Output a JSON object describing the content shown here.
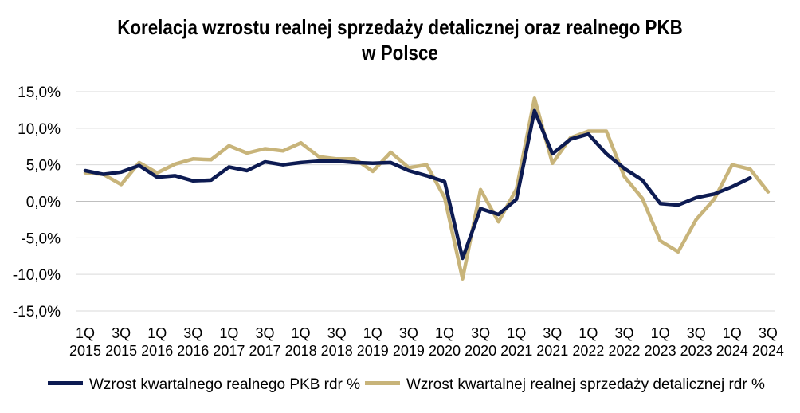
{
  "colors": {
    "gdp": "#0d1b52",
    "retail": "#c8b47a",
    "grid": "#d9d9d9",
    "axis": "#bfbfbf"
  },
  "chart_data": {
    "type": "line",
    "title_lines": [
      "Korelacja wzrostu realnej sprzedaży detalicznej oraz realnego PKB",
      "w Polsce"
    ],
    "ylim": [
      -15,
      15
    ],
    "yticks": [
      "15,0%",
      "10,0%",
      "5,0%",
      "0,0%",
      "-5,0%",
      "-10,0%",
      "-15,0%"
    ],
    "ytick_values": [
      15,
      10,
      5,
      0,
      -5,
      -10,
      -15
    ],
    "grid": "horizontal",
    "legend_position": "bottom",
    "xtick_labels": [
      [
        "1Q",
        "2015"
      ],
      [
        "3Q",
        "2015"
      ],
      [
        "1Q",
        "2016"
      ],
      [
        "3Q",
        "2016"
      ],
      [
        "1Q",
        "2017"
      ],
      [
        "3Q",
        "2017"
      ],
      [
        "1Q",
        "2018"
      ],
      [
        "3Q",
        "2018"
      ],
      [
        "1Q",
        "2019"
      ],
      [
        "3Q",
        "2019"
      ],
      [
        "1Q",
        "2020"
      ],
      [
        "3Q",
        "2020"
      ],
      [
        "1Q",
        "2021"
      ],
      [
        "3Q",
        "2021"
      ],
      [
        "1Q",
        "2022"
      ],
      [
        "3Q",
        "2022"
      ],
      [
        "1Q",
        "2023"
      ],
      [
        "3Q",
        "2023"
      ],
      [
        "1Q",
        "2024"
      ],
      [
        "3Q",
        "2024"
      ]
    ],
    "x": [
      "1Q 2015",
      "2Q 2015",
      "3Q 2015",
      "4Q 2015",
      "1Q 2016",
      "2Q 2016",
      "3Q 2016",
      "4Q 2016",
      "1Q 2017",
      "2Q 2017",
      "3Q 2017",
      "4Q 2017",
      "1Q 2018",
      "2Q 2018",
      "3Q 2018",
      "4Q 2018",
      "1Q 2019",
      "2Q 2019",
      "3Q 2019",
      "4Q 2019",
      "1Q 2020",
      "2Q 2020",
      "3Q 2020",
      "4Q 2020",
      "1Q 2021",
      "2Q 2021",
      "3Q 2021",
      "4Q 2021",
      "1Q 2022",
      "2Q 2022",
      "3Q 2022",
      "4Q 2022",
      "1Q 2023",
      "2Q 2023",
      "3Q 2023",
      "4Q 2023",
      "1Q 2024",
      "2Q 2024",
      "3Q 2024"
    ],
    "series": [
      {
        "name": "Wzrost kwartalnego realnego PKB rdr %",
        "color_key": "gdp",
        "values": [
          4.2,
          3.7,
          4.0,
          4.9,
          3.3,
          3.5,
          2.8,
          2.9,
          4.7,
          4.2,
          5.4,
          5.0,
          5.3,
          5.5,
          5.5,
          5.3,
          5.2,
          5.3,
          4.2,
          3.5,
          2.7,
          -7.8,
          -1.0,
          -1.8,
          0.3,
          12.4,
          6.5,
          8.5,
          9.2,
          6.5,
          4.5,
          2.9,
          -0.3,
          -0.5,
          0.5,
          1.0,
          2.0,
          3.2,
          null
        ]
      },
      {
        "name": "Wzrost kwartalnej realnej sprzedaży detalicznej rdr %",
        "color_key": "retail",
        "values": [
          3.9,
          3.7,
          2.3,
          5.3,
          3.9,
          5.1,
          5.8,
          5.7,
          7.6,
          6.6,
          7.2,
          6.9,
          8.0,
          6.1,
          5.8,
          5.8,
          4.1,
          6.7,
          4.6,
          5.0,
          0.5,
          -10.6,
          1.6,
          -2.8,
          1.7,
          14.1,
          5.2,
          8.7,
          9.6,
          9.6,
          3.4,
          0.4,
          -5.4,
          -6.9,
          -2.5,
          0.3,
          5.0,
          4.4,
          1.3
        ]
      }
    ]
  }
}
